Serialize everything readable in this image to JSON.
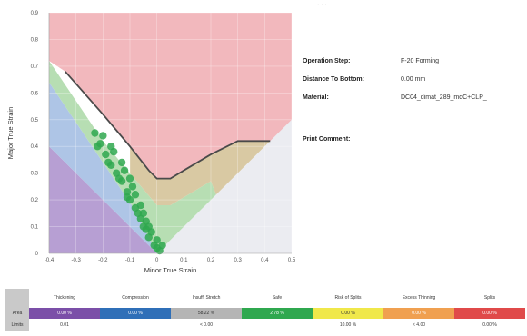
{
  "info": {
    "operation_step_label": "Operation Step:",
    "operation_step_value": "F-20 Forming",
    "distance_label": "Distance To Bottom:",
    "distance_value": "0.00 mm",
    "material_label": "Material:",
    "material_value": "DC04_dimat_289_mdC+CLP_",
    "comment_label": "Print Comment:"
  },
  "top_marks": "— ·   ·   ·",
  "chart_data": {
    "type": "scatter",
    "title": "",
    "xlabel": "Minor True Strain",
    "ylabel": "Major True Strain",
    "xlim": [
      -0.4,
      0.5
    ],
    "ylim": [
      0,
      0.9
    ],
    "xticks": [
      "-0.4",
      "-0.3",
      "-0.2",
      "-0.1",
      "0",
      "0.1",
      "0.2",
      "0.3",
      "0.4",
      "0.5"
    ],
    "yticks": [
      "0",
      "0.1",
      "0.2",
      "0.3",
      "0.4",
      "0.5",
      "0.6",
      "0.7",
      "0.8",
      "0.9"
    ],
    "grid": true,
    "flc_curve": [
      [
        -0.34,
        0.68
      ],
      [
        -0.2,
        0.52
      ],
      [
        -0.1,
        0.4
      ],
      [
        -0.03,
        0.31
      ],
      [
        0.0,
        0.28
      ],
      [
        0.05,
        0.28
      ],
      [
        0.1,
        0.31
      ],
      [
        0.2,
        0.37
      ],
      [
        0.3,
        0.42
      ],
      [
        0.42,
        0.42
      ]
    ],
    "zones": [
      {
        "name": "Splits",
        "color": "#f2b8bd"
      },
      {
        "name": "Risk of Splits",
        "color": "#d9c9a3"
      },
      {
        "name": "Safe",
        "color": "#b7deb3"
      },
      {
        "name": "Insufficient Stretch",
        "color": "#ebecf1"
      },
      {
        "name": "Compression",
        "color": "#aec5e6"
      },
      {
        "name": "Thickening",
        "color": "#b79fd3"
      }
    ],
    "strain_points": [
      [
        -0.23,
        0.45
      ],
      [
        -0.21,
        0.41
      ],
      [
        -0.19,
        0.37
      ],
      [
        -0.17,
        0.33
      ],
      [
        -0.15,
        0.3
      ],
      [
        -0.13,
        0.27
      ],
      [
        -0.11,
        0.23
      ],
      [
        -0.1,
        0.2
      ],
      [
        -0.08,
        0.17
      ],
      [
        -0.06,
        0.13
      ],
      [
        -0.04,
        0.09
      ],
      [
        -0.03,
        0.06
      ],
      [
        -0.01,
        0.03
      ],
      [
        0.01,
        0.01
      ],
      [
        -0.2,
        0.44
      ],
      [
        -0.16,
        0.38
      ],
      [
        -0.12,
        0.31
      ],
      [
        -0.09,
        0.25
      ],
      [
        -0.06,
        0.18
      ],
      [
        -0.04,
        0.12
      ],
      [
        -0.02,
        0.08
      ],
      [
        0.0,
        0.05
      ],
      [
        -0.22,
        0.4
      ],
      [
        -0.18,
        0.34
      ],
      [
        -0.14,
        0.28
      ],
      [
        -0.11,
        0.21
      ],
      [
        -0.07,
        0.15
      ],
      [
        -0.05,
        0.1
      ],
      [
        -0.17,
        0.4
      ],
      [
        -0.13,
        0.34
      ],
      [
        -0.1,
        0.28
      ],
      [
        -0.08,
        0.22
      ],
      [
        -0.05,
        0.15
      ],
      [
        -0.03,
        0.1
      ],
      [
        0.0,
        0.02
      ],
      [
        0.02,
        0.03
      ]
    ],
    "point_color": "#2fa84f"
  },
  "legend": {
    "row_labels": [
      "",
      "Area",
      "Limits"
    ],
    "columns": [
      {
        "name": "Thickening",
        "color": "#7b4fa8",
        "area": "0.00 %",
        "limit": "0.01"
      },
      {
        "name": "Compression",
        "color": "#2f6fb8",
        "area": "0.00 %",
        "limit": ""
      },
      {
        "name": "Insuff. Stretch",
        "color": "#b5b5b5",
        "area": "58.22 %",
        "limit": "< 0.00"
      },
      {
        "name": "Safe",
        "color": "#2fa84f",
        "area": "2.78 %",
        "limit": ""
      },
      {
        "name": "Risk of Splits",
        "color": "#f0e84a",
        "area": "0.00 %",
        "limit": "10.00 %"
      },
      {
        "name": "Excess Thinning",
        "color": "#f0a050",
        "area": "0.00 %",
        "limit": "< 4.00"
      },
      {
        "name": "Splits",
        "color": "#e04a4a",
        "area": "0.00 %",
        "limit": "0.00 %"
      }
    ]
  }
}
